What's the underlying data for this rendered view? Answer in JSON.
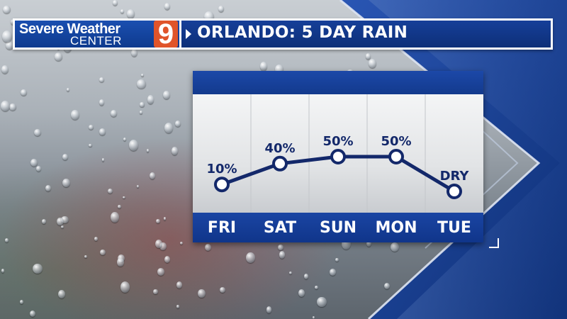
{
  "header": {
    "brand_line1": "Severe Weather",
    "brand_line2": "CENTER",
    "brand_number": "9",
    "title": "ORLANDO: 5 DAY RAIN"
  },
  "colors": {
    "brand_blue": "#163f99",
    "line_navy": "#13286a",
    "logo_orange": "#e0542a"
  },
  "chart_data": {
    "type": "line",
    "categories": [
      "FRI",
      "SAT",
      "SUN",
      "MON",
      "TUE"
    ],
    "values": [
      10,
      40,
      50,
      50,
      0
    ],
    "point_labels": [
      "10%",
      "40%",
      "50%",
      "50%",
      "DRY"
    ],
    "unit": "%",
    "ylim": [
      0,
      100
    ],
    "grid": "vertical separators between days",
    "legend": "none"
  }
}
